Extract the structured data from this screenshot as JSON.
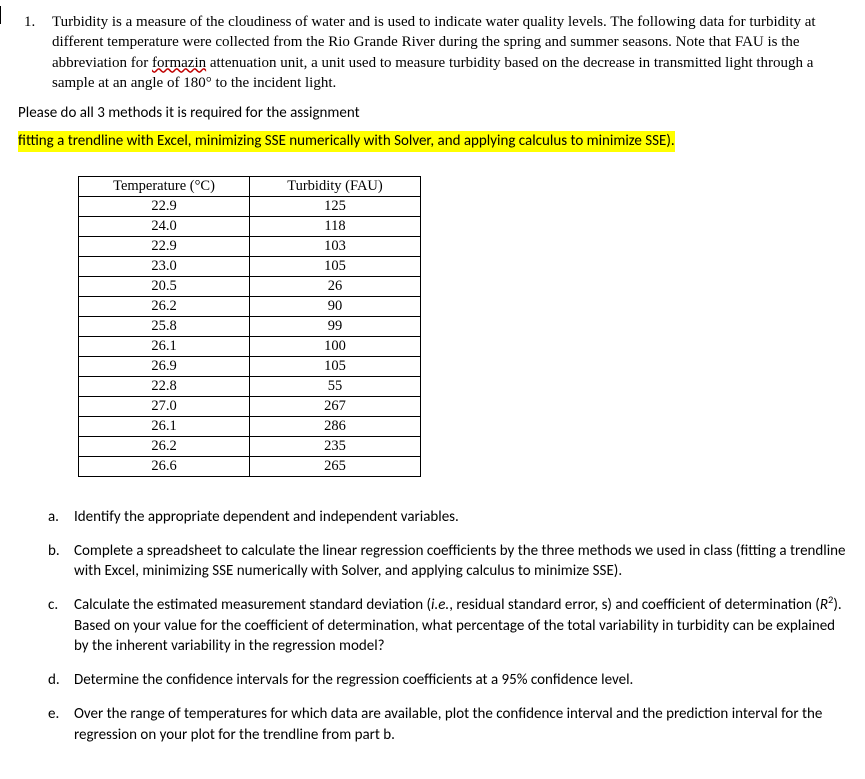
{
  "question": {
    "number": "1.",
    "text_part1": "Turbidity is a measure of the cloudiness of water and is used to indicate water quality levels.  The following data for turbidity at different temperature were collected from the Rio Grande River during the spring and summer seasons.  Note that FAU is the abbreviation for ",
    "formazin": "formazin",
    "text_part2": " attenuation unit, a unit used to measure turbidity based on the decrease in transmitted light through a sample at an angle of 180° to the incident light."
  },
  "instructions": {
    "line1": "Please do all 3 methods it is required for the assignment",
    "line2": "fitting a trendline with Excel, minimizing SSE numerically with Solver, and applying calculus to minimize SSE)."
  },
  "table": {
    "headers": {
      "temp": "Temperature (°C)",
      "turb": "Turbidity (FAU)"
    },
    "rows": [
      {
        "temp": "22.9",
        "turb": "125"
      },
      {
        "temp": "24.0",
        "turb": "118"
      },
      {
        "temp": "22.9",
        "turb": "103"
      },
      {
        "temp": "23.0",
        "turb": "105"
      },
      {
        "temp": "20.5",
        "turb": "26"
      },
      {
        "temp": "26.2",
        "turb": "90"
      },
      {
        "temp": "25.8",
        "turb": "99"
      },
      {
        "temp": "26.1",
        "turb": "100"
      },
      {
        "temp": "26.9",
        "turb": "105"
      },
      {
        "temp": "22.8",
        "turb": "55"
      },
      {
        "temp": "27.0",
        "turb": "267"
      },
      {
        "temp": "26.1",
        "turb": "286"
      },
      {
        "temp": "26.2",
        "turb": "235"
      },
      {
        "temp": "26.6",
        "turb": "265"
      }
    ]
  },
  "subs": {
    "a": {
      "letter": "a.",
      "text": "Identify the appropriate dependent and independent variables."
    },
    "b": {
      "letter": "b.",
      "text": "Complete a spreadsheet to calculate the linear regression coefficients by the three methods we used in class (fitting a trendline with Excel, minimizing SSE numerically with Solver, and applying calculus to minimize SSE)."
    },
    "c": {
      "letter": "c.",
      "p1": "Calculate the estimated measurement standard deviation (",
      "ie": "i.e.",
      "p2": ", residual standard error, s) and coefficient of determination (",
      "R": "R",
      "sup": "2",
      "p3": ").  Based on your value for the coefficient of determination, what percentage of the total variability in turbidity can be explained by the inherent variability in the regression model?"
    },
    "d": {
      "letter": "d.",
      "text": "Determine the confidence intervals for the regression coefficients at a 95% confidence level."
    },
    "e": {
      "letter": "e.",
      "text": "Over the range of temperatures for which data are available, plot the confidence interval and the prediction interval for the regression on your plot for the trendline from part b."
    }
  }
}
